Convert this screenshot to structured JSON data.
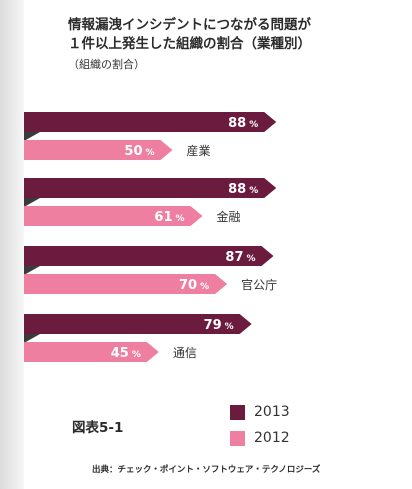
{
  "title_lines": [
    "情報漏洩インシデントにつながる問題が",
    "１件以上発生した組織の割合（業種別）"
  ],
  "subtitle": "（組織の割合）",
  "figure_label": "図表5-1",
  "source": "出典：チェック・ポイント・ソフトウェア・テクノロジーズ",
  "colors": {
    "y2013": "#6b1b3e",
    "y2012": "#ee7fa0",
    "fold": "#3a3a3a"
  },
  "chart_data": {
    "type": "bar",
    "orientation": "horizontal",
    "categories": [
      "産業",
      "金融",
      "官公庁",
      "通信"
    ],
    "series": [
      {
        "name": "2013",
        "values": [
          88,
          88,
          87,
          79
        ]
      },
      {
        "name": "2012",
        "values": [
          50,
          61,
          70,
          45
        ]
      }
    ],
    "unit": "%",
    "title": "情報漏洩インシデントにつながる問題が１件以上発生した組織の割合（業種別）",
    "subtitle": "（組織の割合）",
    "legend": [
      "2013",
      "2012"
    ],
    "legend_position": "bottom-right",
    "grid": false
  }
}
